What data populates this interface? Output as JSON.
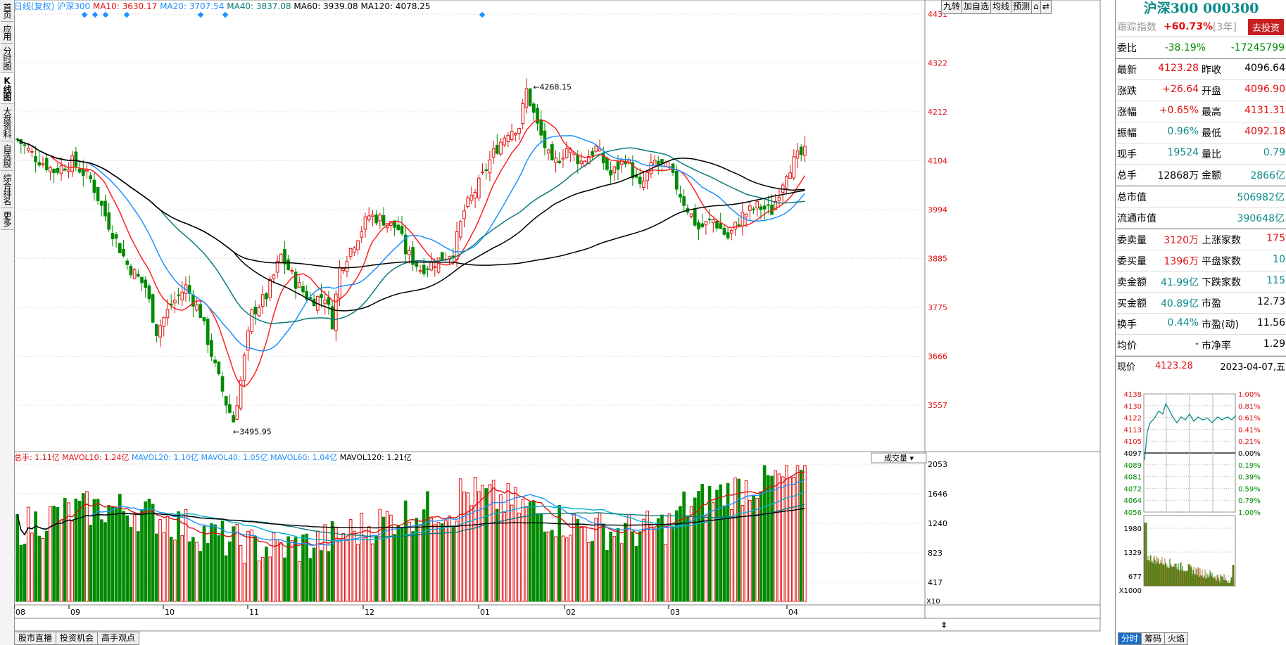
{
  "left_tabs": [
    "首页",
    "应用",
    "分时图",
    "K线图",
    "大盘资料",
    "自选股",
    "综合排名",
    "更多"
  ],
  "header": {
    "period": "日线(复权)",
    "name": "沪深300",
    "ma": [
      {
        "label": "MA10: 3630.17",
        "color": "#e01010"
      },
      {
        "label": "MA20: 3707.54",
        "color": "#1e90ff"
      },
      {
        "label": "MA40: 3837.08",
        "color": "#0a7a7a"
      },
      {
        "label": "MA60: 3939.08",
        "color": "#000000"
      },
      {
        "label": "MA120: 4078.25",
        "color": "#000000"
      }
    ]
  },
  "toolbar": [
    "九转",
    "加自选",
    "均线",
    "预测",
    "⌂",
    "⇄"
  ],
  "price_axis": [
    "4431",
    "4322",
    "4212",
    "4104",
    "3994",
    "3885",
    "3775",
    "3666",
    "3557"
  ],
  "annotations": {
    "high": "4268.15",
    "low": "3495.95"
  },
  "volume_header": [
    {
      "label": "总手: 1.11亿",
      "color": "#e01010"
    },
    {
      "label": "MAVOL10: 1.24亿",
      "color": "#e01010"
    },
    {
      "label": "MAVOL20: 1.10亿",
      "color": "#1e90ff"
    },
    {
      "label": "MAVOL40: 1.05亿",
      "color": "#1e90ff"
    },
    {
      "label": "MAVOL60: 1.04亿",
      "color": "#1e90ff"
    },
    {
      "label": "MAVOL120: 1.21亿",
      "color": "#000000"
    }
  ],
  "volume_dropdown": "成交量",
  "volume_axis": [
    "2053",
    "1646",
    "1240",
    "823",
    "417"
  ],
  "volume_unit": "X10",
  "months": [
    "08",
    "09",
    "10",
    "11",
    "12",
    "01",
    "02",
    "03",
    "04"
  ],
  "bottom_tabs": [
    "股市直播",
    "投资机会",
    "高手观点"
  ],
  "side": {
    "title": "沪深300 000300",
    "tracking": {
      "label": "跟踪指数",
      "value": "+60.73%",
      "period": "[3年]",
      "button": "去投资"
    },
    "weibi": {
      "label": "委比",
      "pct": "-38.19%",
      "value": "-17245799"
    },
    "quote_rows": [
      {
        "l1": "最新",
        "v1": "4123.28",
        "c1": "red",
        "l2": "昨收",
        "v2": "4096.64",
        "c2": "black"
      },
      {
        "l1": "涨跌",
        "v1": "+26.64",
        "c1": "red",
        "l2": "开盘",
        "v2": "4096.90",
        "c2": "red"
      },
      {
        "l1": "涨幅",
        "v1": "+0.65%",
        "c1": "red",
        "l2": "最高",
        "v2": "4131.31",
        "c2": "red"
      },
      {
        "l1": "振幅",
        "v1": "0.96%",
        "c1": "teal",
        "l2": "最低",
        "v2": "4092.18",
        "c2": "red"
      },
      {
        "l1": "现手",
        "v1": "19524",
        "c1": "teal",
        "l2": "量比",
        "v2": "0.79",
        "c2": "teal"
      },
      {
        "l1": "总手",
        "v1": "12868万",
        "c1": "black",
        "l2": "金额",
        "v2": "2866亿",
        "c2": "teal"
      }
    ],
    "cap_rows": [
      {
        "label": "总市值",
        "value": "506982亿"
      },
      {
        "label": "流通市值",
        "value": "390648亿"
      }
    ],
    "order_rows": [
      {
        "l1": "委卖量",
        "v1": "3120万",
        "c1": "red",
        "l2": "上涨家数",
        "v2": "175",
        "c2": "red"
      },
      {
        "l1": "委买量",
        "v1": "1396万",
        "c1": "red",
        "l2": "平盘家数",
        "v2": "10",
        "c2": "teal"
      },
      {
        "l1": "卖金额",
        "v1": "41.99亿",
        "c1": "teal",
        "l2": "下跌家数",
        "v2": "115",
        "c2": "teal"
      },
      {
        "l1": "买金额",
        "v1": "40.89亿",
        "c1": "teal",
        "l2": "市盈",
        "v2": "12.73",
        "c2": "black"
      },
      {
        "l1": "换手",
        "v1": "0.44%",
        "c1": "teal",
        "l2": "市盈(动)",
        "v2": "11.56",
        "c2": "black"
      },
      {
        "l1": "均价",
        "v1": "-",
        "c1": "black",
        "l2": "市净率",
        "v2": "1.29",
        "c2": "black"
      }
    ],
    "mini": {
      "label": "现价",
      "price": "4123.28",
      "date": "2023-04-07,五",
      "price_axis": [
        "4138",
        "4130",
        "4122",
        "4113",
        "4105",
        "4097",
        "4089",
        "4081",
        "4072",
        "4064",
        "4056"
      ],
      "pct_axis": [
        "1.00%",
        "0.81%",
        "0.61%",
        "0.41%",
        "0.21%",
        "0.00%",
        "0.19%",
        "0.39%",
        "0.59%",
        "0.79%",
        "1.00%"
      ],
      "vol_axis": [
        "1980",
        "1329",
        "677"
      ],
      "vol_unit": "X1000",
      "tabs": [
        "分时",
        "筹码",
        "火焰"
      ]
    }
  },
  "colors": {
    "up": "#e01010",
    "down": "#008a00",
    "ma10": "#ff2020",
    "ma20": "#1e90ff",
    "ma40": "#0a7a7a",
    "ma60": "#000000",
    "ma120": "#000000"
  }
}
